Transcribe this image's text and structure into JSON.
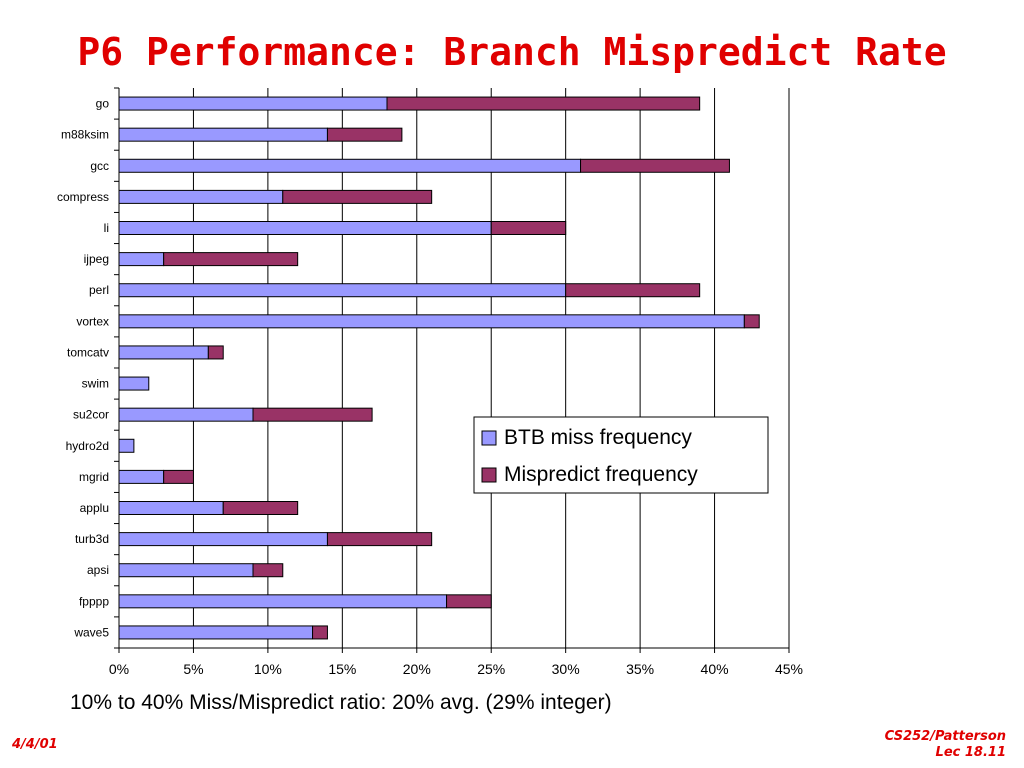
{
  "slide": {
    "title": "P6 Performance: Branch Mispredict Rate",
    "caption": "10% to 40% Miss/Mispredict ratio: 20% avg. (29% integer)",
    "footer_date": "4/4/01",
    "footer_course": "CS252/Patterson",
    "footer_lecture": "Lec 18.11"
  },
  "chart_data": {
    "type": "bar",
    "orientation": "horizontal",
    "stacked": true,
    "categories": [
      "go",
      "m88ksim",
      "gcc",
      "compress",
      "li",
      "ijpeg",
      "perl",
      "vortex",
      "tomcatv",
      "swim",
      "su2cor",
      "hydro2d",
      "mgrid",
      "applu",
      "turb3d",
      "apsi",
      "fpppp",
      "wave5"
    ],
    "series": [
      {
        "name": "BTB miss frequency",
        "values": [
          18,
          14,
          31,
          11,
          25,
          3,
          30,
          42,
          6,
          2,
          9,
          1,
          3,
          7,
          14,
          9,
          22,
          13
        ]
      },
      {
        "name": "Mispredict frequency",
        "values": [
          21,
          5,
          10,
          10,
          5,
          9,
          9,
          1,
          1,
          0,
          8,
          0,
          2,
          5,
          7,
          2,
          3,
          1
        ]
      }
    ],
    "xlim": [
      0,
      45
    ],
    "xticks": [
      "0%",
      "5%",
      "10%",
      "15%",
      "20%",
      "25%",
      "30%",
      "35%",
      "40%",
      "45%"
    ],
    "grid": true,
    "legend_position": "right",
    "colors": {
      "btb": "#9999ff",
      "mispredict": "#993366"
    }
  }
}
